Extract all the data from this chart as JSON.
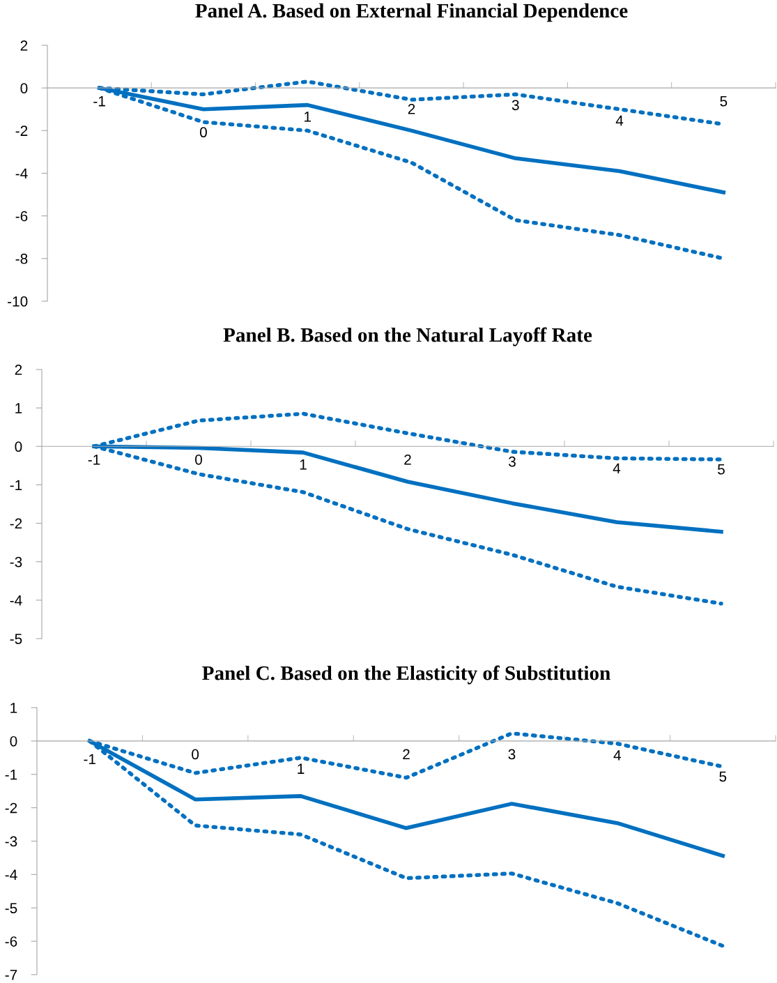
{
  "chart_data": [
    {
      "type": "line",
      "title": "Panel A. Based on External Financial Dependence",
      "categories": [
        "-1",
        "0",
        "1",
        "2",
        "3",
        "4",
        "5"
      ],
      "ylim": [
        -10,
        2
      ],
      "yticks": [
        -10,
        -8,
        -6,
        -4,
        -2,
        0,
        2
      ],
      "grid": false,
      "marker": "none",
      "series": [
        {
          "color": "#0070c0",
          "line_style": "solid",
          "values": [
            0,
            -1.0,
            -0.8,
            -2.0,
            -3.3,
            -3.9,
            -4.9
          ]
        },
        {
          "color": "#0070c0",
          "line_style": "dotted",
          "values": [
            0,
            -0.3,
            0.3,
            -0.55,
            -0.3,
            -1.0,
            -1.7
          ]
        },
        {
          "color": "#0070c0",
          "line_style": "dotted",
          "values": [
            0,
            -1.6,
            -2.0,
            -3.5,
            -6.2,
            -6.9,
            -8.0
          ]
        }
      ]
    },
    {
      "type": "line",
      "title": "Panel B. Based on the Natural Layoff Rate",
      "categories": [
        "-1",
        "0",
        "1",
        "2",
        "3",
        "4",
        "5"
      ],
      "ylim": [
        -5,
        2
      ],
      "yticks": [
        -5,
        -4,
        -3,
        -2,
        -1,
        0,
        1,
        2
      ],
      "grid": false,
      "marker": "none",
      "series": [
        {
          "color": "#0070c0",
          "line_style": "solid",
          "values": [
            0,
            -0.04,
            -0.16,
            -0.92,
            -1.48,
            -1.97,
            -2.22
          ]
        },
        {
          "color": "#0070c0",
          "line_style": "dotted",
          "values": [
            0,
            0.67,
            0.85,
            0.34,
            -0.14,
            -0.31,
            -0.34
          ]
        },
        {
          "color": "#0070c0",
          "line_style": "dotted",
          "values": [
            0,
            -0.72,
            -1.19,
            -2.15,
            -2.82,
            -3.65,
            -4.09
          ]
        }
      ]
    },
    {
      "type": "line",
      "title": "Panel C. Based on the Elasticity of Substitution",
      "categories": [
        "-1",
        "0",
        "1",
        "2",
        "3",
        "4",
        "5"
      ],
      "ylim": [
        -7,
        1
      ],
      "yticks": [
        -7,
        -6,
        -5,
        -4,
        -3,
        -2,
        -1,
        0,
        1
      ],
      "grid": false,
      "marker": "none",
      "series": [
        {
          "color": "#0070c0",
          "line_style": "solid",
          "values": [
            0,
            -1.75,
            -1.65,
            -2.61,
            -1.88,
            -2.46,
            -3.44
          ]
        },
        {
          "color": "#0070c0",
          "line_style": "dotted",
          "values": [
            0,
            -0.96,
            -0.5,
            -1.1,
            0.23,
            -0.08,
            -0.77
          ]
        },
        {
          "color": "#0070c0",
          "line_style": "dotted",
          "values": [
            0,
            -2.53,
            -2.8,
            -4.11,
            -3.97,
            -4.86,
            -6.14
          ]
        }
      ]
    }
  ]
}
